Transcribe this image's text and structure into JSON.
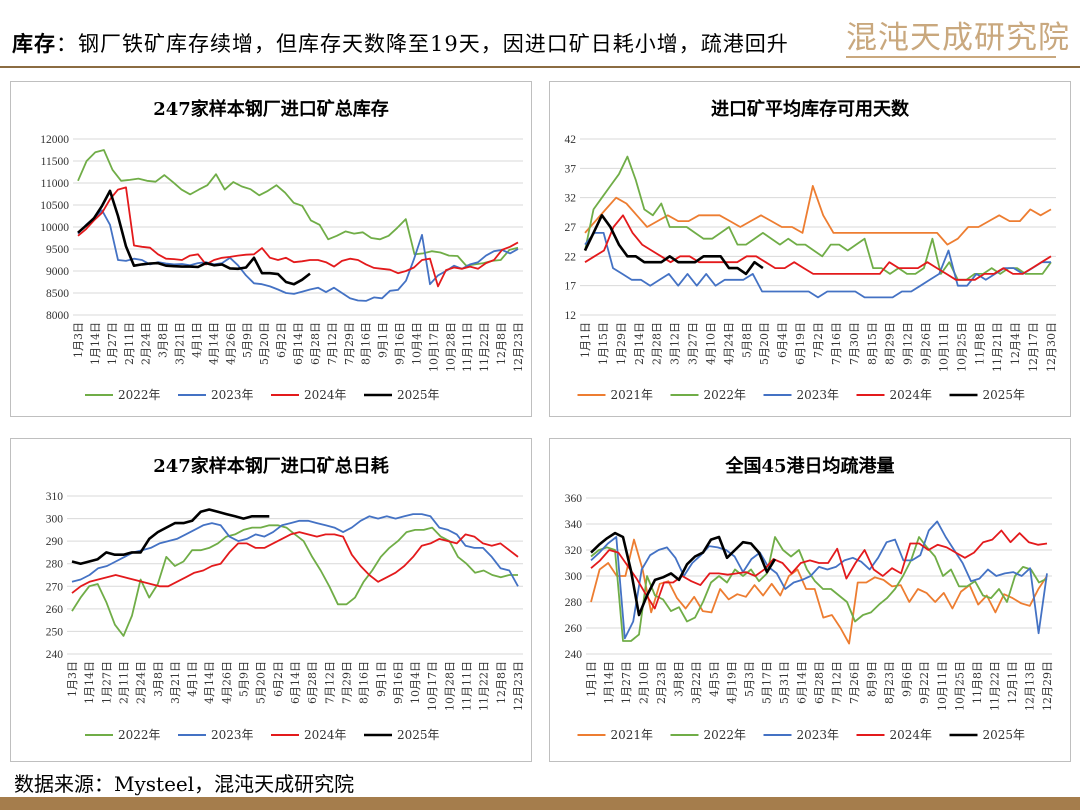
{
  "header": {
    "label": "库存",
    "colon": "：",
    "text": "钢厂铁矿库存续增，但库存天数降至19天，因进口矿日耗小增，疏港回升"
  },
  "logo": {
    "text": "混沌天成研究院",
    "color": "#c9a87e"
  },
  "footer": {
    "source": "数据来源：Mysteel，混沌天成研究院"
  },
  "colors": {
    "2021年": "#ed7d31",
    "2022年": "#70ad47",
    "2023年": "#4472c4",
    "2024年": "#e31a1c",
    "2025年": "#000000",
    "accent": "#a57d4c"
  },
  "chart_data": [
    {
      "id": "c1",
      "type": "line",
      "title": "247家样本钢厂进口矿总库存",
      "ylim": [
        8000,
        12000
      ],
      "yticks": [
        8000,
        8500,
        9000,
        9500,
        10000,
        10500,
        11000,
        11500,
        12000
      ],
      "xticks": [
        "1月3日",
        "1月14日",
        "1月27日",
        "2月11日",
        "2月24日",
        "3月8日",
        "3月21日",
        "4月1日",
        "4月14日",
        "4月26日",
        "5月9日",
        "5月20日",
        "6月2日",
        "6月14日",
        "6月28日",
        "7月12日",
        "7月29日",
        "8月16日",
        "9月1日",
        "9月16日",
        "10月4日",
        "10月17日",
        "10月28日",
        "11月11日",
        "11月22日",
        "12月8日",
        "12月23日"
      ],
      "series": [
        {
          "name": "2022年",
          "values": [
            11050,
            11500,
            11700,
            11750,
            11300,
            11050,
            11070,
            11100,
            11050,
            11030,
            11180,
            11020,
            10850,
            10740,
            10850,
            10950,
            11200,
            10850,
            11020,
            10920,
            10860,
            10720,
            10820,
            10950,
            10780,
            10550,
            10480,
            10150,
            10050,
            9720,
            9800,
            9900,
            9850,
            9880,
            9750,
            9720,
            9800,
            9980,
            10180,
            9380,
            9400,
            9450,
            9420,
            9350,
            9340,
            9120,
            9150,
            9180,
            9230,
            9250,
            9480,
            9530
          ]
        },
        {
          "name": "2023年",
          "values": [
            9850,
            10050,
            10200,
            10380,
            10050,
            9250,
            9230,
            9280,
            9250,
            9150,
            9200,
            9170,
            9150,
            9160,
            9130,
            9180,
            9200,
            9150,
            9180,
            9300,
            9130,
            8900,
            8720,
            8700,
            8650,
            8580,
            8500,
            8480,
            8530,
            8580,
            8620,
            8520,
            8620,
            8500,
            8380,
            8330,
            8320,
            8400,
            8380,
            8550,
            8570,
            8780,
            9270,
            9820,
            8700,
            8900,
            9000,
            9120,
            9050,
            9150,
            9200,
            9350,
            9450,
            9480,
            9400,
            9500
          ]
        },
        {
          "name": "2024年",
          "values": [
            9800,
            9950,
            10150,
            10320,
            10630,
            10850,
            10900,
            9580,
            9550,
            9530,
            9380,
            9280,
            9270,
            9250,
            9350,
            9380,
            9150,
            9250,
            9300,
            9320,
            9350,
            9370,
            9380,
            9520,
            9300,
            9250,
            9300,
            9200,
            9220,
            9250,
            9250,
            9200,
            9100,
            9230,
            9280,
            9250,
            9150,
            9070,
            9050,
            9030,
            8950,
            9000,
            9080,
            9250,
            9280,
            8650,
            9020,
            9080,
            9050,
            9100,
            9050,
            9180,
            9250,
            9480,
            9550,
            9650
          ]
        },
        {
          "name": "2025年",
          "values": [
            9870,
            10030,
            10200,
            10480,
            10820,
            10250,
            9560,
            9120,
            9150,
            9170,
            9180,
            9120,
            9110,
            9100,
            9100,
            9090,
            9180,
            9130,
            9150,
            9060,
            9050,
            9080,
            9300,
            8950,
            8950,
            8930,
            8750,
            8700,
            8800,
            8940
          ]
        }
      ]
    },
    {
      "id": "c2",
      "type": "line",
      "title": "进口矿平均库存可用天数",
      "ylim": [
        12,
        42
      ],
      "yticks": [
        12,
        17,
        22,
        27,
        32,
        37,
        42
      ],
      "xticks": [
        "1月1日",
        "1月15日",
        "1月29日",
        "2月14日",
        "2月28日",
        "3月12日",
        "3月27日",
        "4月10日",
        "4月24日",
        "5月8日",
        "5月20日",
        "6月4日",
        "6月19日",
        "7月2日",
        "7月16日",
        "7月30日",
        "8月15日",
        "8月29日",
        "9月12日",
        "9月26日",
        "10月11日",
        "10月25日",
        "11月8日",
        "11月21日",
        "12月4日",
        "12月17日",
        "12月30日"
      ],
      "series": [
        {
          "name": "2021年",
          "values": [
            26,
            28,
            30,
            32,
            31,
            29,
            27,
            28,
            29,
            28,
            28,
            29,
            29,
            29,
            28,
            27,
            28,
            29,
            28,
            27,
            27,
            26,
            34,
            29,
            26,
            26,
            26,
            26,
            26,
            26,
            26,
            26,
            26,
            26,
            26,
            24,
            25,
            27,
            27,
            28,
            29,
            28,
            28,
            30,
            29,
            30
          ]
        },
        {
          "name": "2022年",
          "values": [
            23,
            30,
            32,
            34,
            36,
            39,
            35,
            30,
            29,
            31,
            27,
            27,
            27,
            26,
            25,
            25,
            26,
            27,
            24,
            24,
            25,
            26,
            25,
            24,
            25,
            24,
            24,
            23,
            22,
            24,
            24,
            23,
            24,
            25,
            20,
            20,
            19,
            20,
            19,
            19,
            20,
            25,
            19,
            21,
            18,
            18,
            19,
            19,
            20,
            19,
            20,
            20,
            19,
            19,
            19,
            21
          ]
        },
        {
          "name": "2023年",
          "values": [
            24,
            26,
            26,
            20,
            19,
            18,
            18,
            17,
            18,
            19,
            17,
            19,
            17,
            19,
            17,
            18,
            18,
            18,
            19,
            16,
            16,
            16,
            16,
            16,
            16,
            15,
            16,
            16,
            16,
            16,
            15,
            15,
            15,
            15,
            16,
            16,
            17,
            18,
            19,
            23,
            17,
            17,
            19,
            18,
            19,
            20,
            20,
            19,
            20,
            21,
            21
          ]
        },
        {
          "name": "2024年",
          "values": [
            21,
            22,
            23,
            27,
            29,
            26,
            24,
            23,
            22,
            21,
            22,
            22,
            21,
            21,
            21,
            21,
            21,
            22,
            22,
            21,
            20,
            20,
            21,
            20,
            19,
            19,
            19,
            19,
            19,
            19,
            19,
            19,
            21,
            20,
            20,
            20,
            21,
            20,
            19,
            18,
            18,
            18,
            19,
            19,
            20,
            19,
            19,
            20,
            21,
            22
          ]
        },
        {
          "name": "2025年",
          "values": [
            23,
            26,
            29,
            27,
            24,
            22,
            22,
            21,
            21,
            21,
            22,
            21,
            21,
            21,
            22,
            22,
            22,
            20,
            20,
            19,
            21,
            20
          ]
        }
      ]
    },
    {
      "id": "c3",
      "type": "line",
      "title": "247家样本钢厂进口矿总日耗",
      "ylim": [
        240,
        310
      ],
      "yticks": [
        240,
        250,
        260,
        270,
        280,
        290,
        300,
        310
      ],
      "xticks": [
        "1月3日",
        "1月14日",
        "1月27日",
        "2月11日",
        "2月24日",
        "3月8日",
        "3月21日",
        "4月1日",
        "4月14日",
        "4月26日",
        "5月9日",
        "5月20日",
        "6月2日",
        "6月14日",
        "6月28日",
        "7月12日",
        "7月29日",
        "8月16日",
        "9月1日",
        "9月16日",
        "10月4日",
        "10月17日",
        "10月28日",
        "11月11日",
        "11月22日",
        "12月8日",
        "12月23日"
      ],
      "series": [
        {
          "name": "2022年",
          "values": [
            259,
            265,
            270,
            271,
            263,
            253,
            248,
            257,
            273,
            265,
            271,
            283,
            279,
            281,
            286,
            286,
            287,
            289,
            292,
            293,
            295,
            296,
            296,
            297,
            297,
            296,
            293,
            290,
            283,
            277,
            270,
            262,
            262,
            265,
            272,
            277,
            283,
            287,
            290,
            294,
            295,
            295,
            296,
            292,
            290,
            283,
            280,
            276,
            277,
            275,
            274,
            275,
            275
          ]
        },
        {
          "name": "2023年",
          "values": [
            272,
            273,
            275,
            278,
            279,
            281,
            283,
            285,
            286,
            287,
            289,
            290,
            291,
            293,
            295,
            297,
            298,
            297,
            292,
            290,
            291,
            293,
            292,
            294,
            297,
            298,
            299,
            299,
            298,
            297,
            296,
            294,
            296,
            299,
            301,
            300,
            301,
            300,
            301,
            302,
            302,
            301,
            296,
            295,
            293,
            288,
            287,
            287,
            283,
            278,
            277,
            270
          ]
        },
        {
          "name": "2024年",
          "values": [
            267,
            270,
            272,
            273,
            274,
            275,
            274,
            273,
            272,
            271,
            270,
            270,
            272,
            274,
            276,
            277,
            279,
            280,
            285,
            289,
            289,
            287,
            287,
            289,
            291,
            293,
            294,
            293,
            292,
            293,
            293,
            292,
            284,
            279,
            275,
            272,
            274,
            276,
            279,
            283,
            288,
            289,
            291,
            290,
            289,
            293,
            292,
            289,
            288,
            289,
            286,
            283
          ]
        },
        {
          "name": "2025年",
          "values": [
            281,
            280,
            281,
            282,
            285,
            284,
            284,
            285,
            285,
            291,
            294,
            296,
            298,
            298,
            299,
            303,
            304,
            303,
            302,
            301,
            300,
            301,
            301,
            301
          ]
        }
      ]
    },
    {
      "id": "c4",
      "type": "line",
      "title": "全国45港日均疏港量",
      "ylim": [
        240,
        360
      ],
      "yticks": [
        240,
        260,
        280,
        300,
        320,
        340,
        360
      ],
      "xticks": [
        "1月1日",
        "1月14日",
        "1月27日",
        "2月10日",
        "2月23日",
        "3月8日",
        "3月22日",
        "4月5日",
        "4月19日",
        "5月3日",
        "5月17日",
        "5月31日",
        "6月14日",
        "6月28日",
        "7月12日",
        "7月26日",
        "8月9日",
        "8月23日",
        "9月6日",
        "9月22日",
        "10月11日",
        "10月25日",
        "11月8日",
        "11月22日",
        "12月1日",
        "12月13日",
        "12月29日"
      ],
      "series": [
        {
          "name": "2021年",
          "values": [
            280,
            305,
            310,
            300,
            300,
            328,
            305,
            272,
            294,
            296,
            283,
            275,
            284,
            273,
            272,
            290,
            282,
            286,
            284,
            293,
            285,
            294,
            285,
            300,
            305,
            290,
            290,
            268,
            270,
            260,
            248,
            295,
            295,
            299,
            297,
            292,
            293,
            280,
            290,
            287,
            280,
            287,
            275,
            288,
            293,
            278,
            285,
            272,
            286,
            283,
            279,
            277,
            290,
            300
          ]
        },
        {
          "name": "2022年",
          "values": [
            315,
            320,
            322,
            320,
            250,
            250,
            255,
            300,
            285,
            282,
            273,
            276,
            265,
            268,
            280,
            295,
            300,
            295,
            305,
            300,
            305,
            296,
            302,
            330,
            320,
            315,
            320,
            305,
            296,
            290,
            290,
            285,
            280,
            265,
            270,
            272,
            278,
            283,
            290,
            300,
            312,
            330,
            322,
            315,
            300,
            305,
            292,
            292,
            296,
            285,
            283,
            290,
            280,
            300,
            307,
            305,
            295,
            298
          ]
        },
        {
          "name": "2023年",
          "values": [
            312,
            318,
            325,
            330,
            252,
            265,
            305,
            316,
            320,
            322,
            314,
            300,
            310,
            316,
            323,
            322,
            320,
            315,
            303,
            313,
            318,
            307,
            302,
            290,
            295,
            297,
            300,
            307,
            305,
            307,
            312,
            314,
            311,
            305,
            314,
            326,
            328,
            312,
            312,
            316,
            335,
            342,
            330,
            320,
            310,
            296,
            298,
            305,
            300,
            302,
            303,
            300,
            306,
            256,
            302
          ]
        },
        {
          "name": "2024年",
          "values": [
            306,
            312,
            320,
            318,
            308,
            298,
            286,
            275,
            295,
            295,
            300,
            296,
            293,
            302,
            302,
            301,
            302,
            303,
            300,
            305,
            313,
            310,
            302,
            310,
            312,
            310,
            310,
            321,
            298,
            310,
            320,
            305,
            300,
            306,
            302,
            325,
            325,
            320,
            324,
            322,
            318,
            314,
            318,
            326,
            328,
            335,
            326,
            333,
            326,
            324,
            325
          ]
        },
        {
          "name": "2025年",
          "values": [
            318,
            324,
            329,
            333,
            330,
            304,
            270,
            285,
            297,
            299,
            302,
            297,
            309,
            315,
            318,
            328,
            330,
            314,
            320,
            326,
            325,
            318,
            303,
            313
          ]
        }
      ]
    }
  ]
}
